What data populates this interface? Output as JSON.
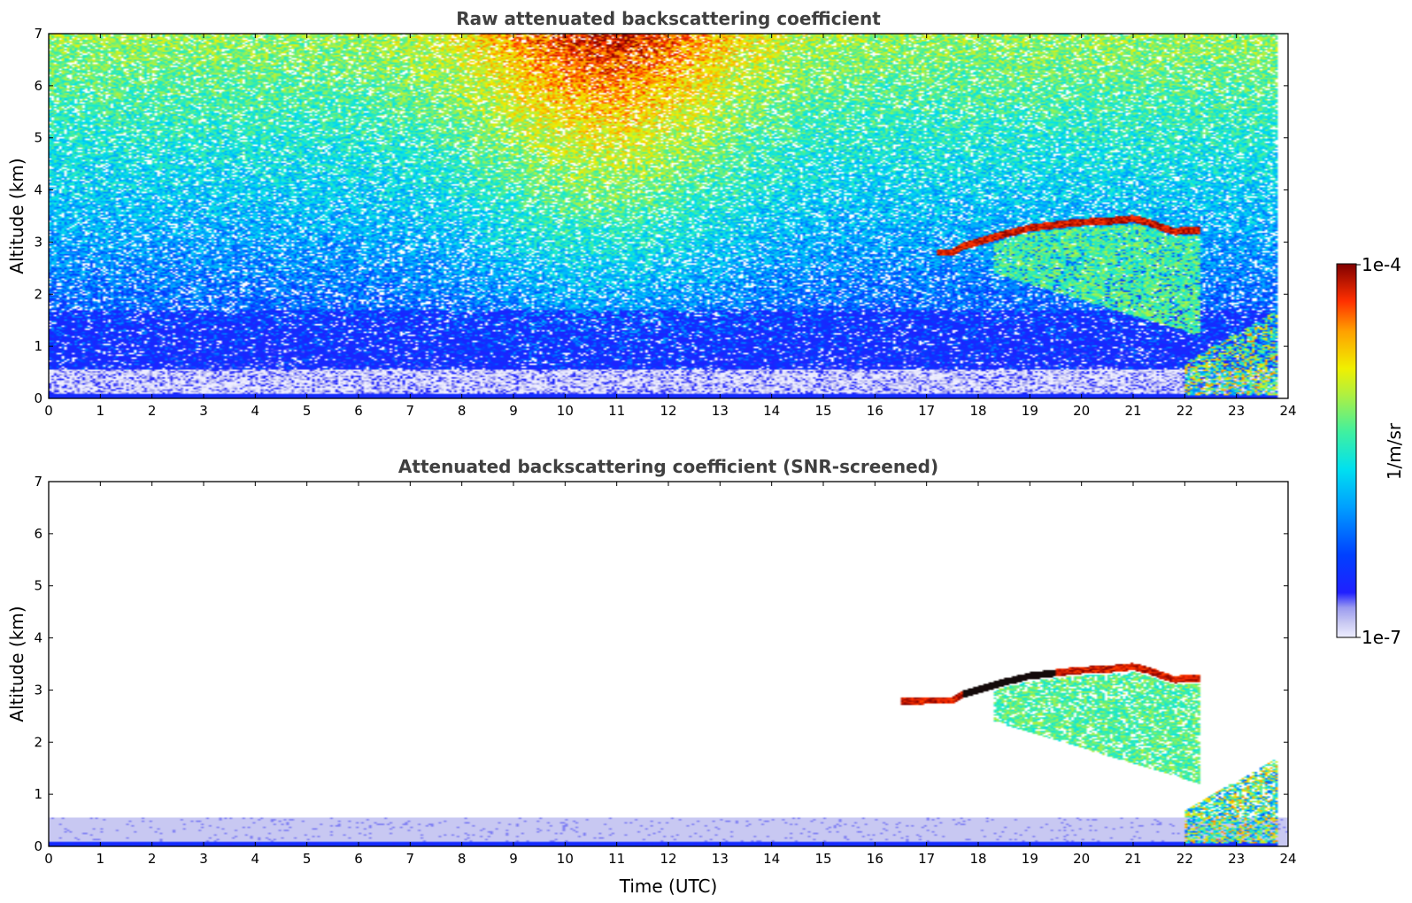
{
  "chart_data": [
    {
      "type": "heatmap",
      "title": "Raw attenuated backscattering coefficient",
      "xlabel": "",
      "ylabel": "Altitude (km)",
      "xlim": [
        0,
        24
      ],
      "ylim": [
        0,
        7
      ],
      "xticks": [
        0,
        1,
        2,
        3,
        4,
        5,
        6,
        7,
        8,
        9,
        10,
        11,
        12,
        13,
        14,
        15,
        16,
        17,
        18,
        19,
        20,
        21,
        22,
        23,
        24
      ],
      "yticks": [
        0,
        1,
        2,
        3,
        4,
        5,
        6,
        7
      ],
      "noise": "full",
      "features": [
        {
          "kind": "cloud-top-layer",
          "t": [
            17.2,
            17.5,
            17.7,
            18.0,
            18.5,
            19.0,
            19.5,
            20.0,
            20.5,
            21.0,
            21.3,
            21.5,
            21.8,
            22.0,
            22.3
          ],
          "alt": [
            2.8,
            2.8,
            2.92,
            3.0,
            3.15,
            3.27,
            3.33,
            3.38,
            3.4,
            3.45,
            3.38,
            3.3,
            3.2,
            3.22,
            3.22
          ]
        },
        {
          "kind": "virga",
          "t_range": [
            18.3,
            22.3
          ],
          "alt_range": [
            1.2,
            3.1
          ]
        },
        {
          "kind": "boundary-layer",
          "t_range": [
            22.0,
            23.8
          ],
          "alt_range": [
            0.0,
            2.1
          ]
        }
      ]
    },
    {
      "type": "heatmap",
      "title": "Attenuated backscattering coefficient (SNR-screened)",
      "xlabel": "Time (UTC)",
      "ylabel": "Altitude (km)",
      "xlim": [
        0,
        24
      ],
      "ylim": [
        0,
        7
      ],
      "xticks": [
        0,
        1,
        2,
        3,
        4,
        5,
        6,
        7,
        8,
        9,
        10,
        11,
        12,
        13,
        14,
        15,
        16,
        17,
        18,
        19,
        20,
        21,
        22,
        23,
        24
      ],
      "yticks": [
        0,
        1,
        2,
        3,
        4,
        5,
        6,
        7
      ],
      "noise": "screened",
      "features": [
        {
          "kind": "cloud-top-layer",
          "t": [
            16.5,
            17.0,
            17.5,
            17.7,
            18.0,
            18.5,
            19.0,
            19.5,
            20.0,
            20.5,
            21.0,
            21.3,
            21.5,
            21.8,
            22.0,
            22.3
          ],
          "alt": [
            2.78,
            2.8,
            2.8,
            2.92,
            3.0,
            3.15,
            3.27,
            3.33,
            3.38,
            3.4,
            3.45,
            3.38,
            3.3,
            3.2,
            3.22,
            3.22
          ]
        },
        {
          "kind": "virga",
          "t_range": [
            18.3,
            22.3
          ],
          "alt_range": [
            1.2,
            3.1
          ]
        },
        {
          "kind": "boundary-layer",
          "t_range": [
            22.0,
            23.8
          ],
          "alt_range": [
            0.0,
            2.1
          ]
        }
      ]
    }
  ],
  "colorbar": {
    "label": "1/m/sr",
    "max_label": "1e-4",
    "min_label": "1e-7",
    "scale": "log",
    "range": [
      1e-07,
      0.0001
    ],
    "colormap": "jet with lavender low end"
  },
  "colors": {
    "title": "#404040",
    "low": "#e6e6fa",
    "high": "#800000"
  }
}
